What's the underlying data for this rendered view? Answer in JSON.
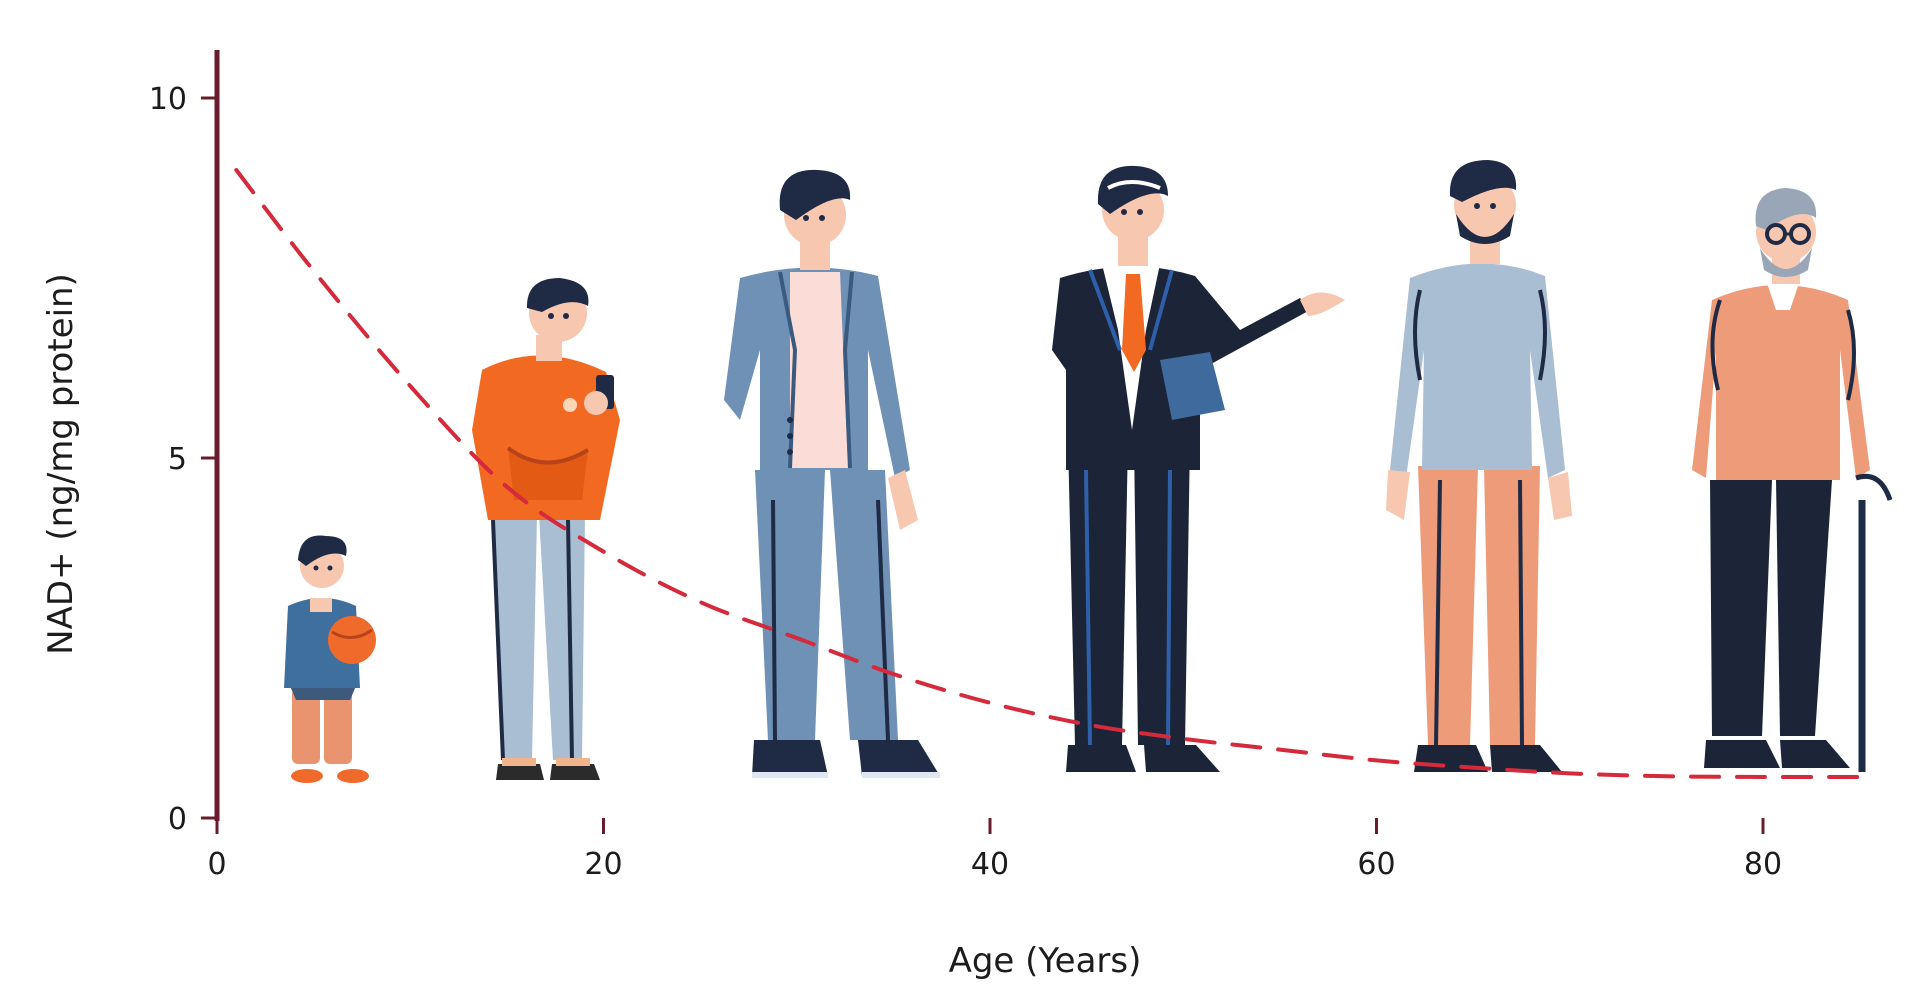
{
  "chart_data": {
    "type": "line",
    "title": "",
    "xlabel": "Age (Years)",
    "ylabel": "NAD+ (ng/mg protein)",
    "xlim": [
      0,
      85
    ],
    "ylim": [
      0,
      10
    ],
    "x_ticks": [
      0,
      20,
      40,
      60,
      80
    ],
    "y_ticks": [
      0,
      5,
      10
    ],
    "grid": false,
    "legend": "none",
    "series": [
      {
        "style": "dashed",
        "color": "#d42a3c",
        "x": [
          1,
          5,
          10,
          15,
          20,
          25,
          30,
          35,
          40,
          45,
          50,
          55,
          60,
          65,
          70,
          75,
          80,
          85
        ],
        "y": [
          9.0,
          7.6,
          6.0,
          4.6,
          3.7,
          3.0,
          2.5,
          2.0,
          1.6,
          1.3,
          1.1,
          0.95,
          0.8,
          0.7,
          0.62,
          0.58,
          0.57,
          0.57
        ]
      }
    ],
    "illustrations": [
      {
        "name": "toddler-figure",
        "age": 6
      },
      {
        "name": "teen-figure",
        "age": 17
      },
      {
        "name": "young-adult-figure",
        "age": 31
      },
      {
        "name": "businessman-figure",
        "age": 48
      },
      {
        "name": "bearded-man-figure",
        "age": 66
      },
      {
        "name": "elderly-man-figure",
        "age": 81
      }
    ]
  },
  "colors": {
    "axis": "#6b1c2c",
    "axis_accent": "#c41e3a",
    "curve": "#d42a3c"
  }
}
